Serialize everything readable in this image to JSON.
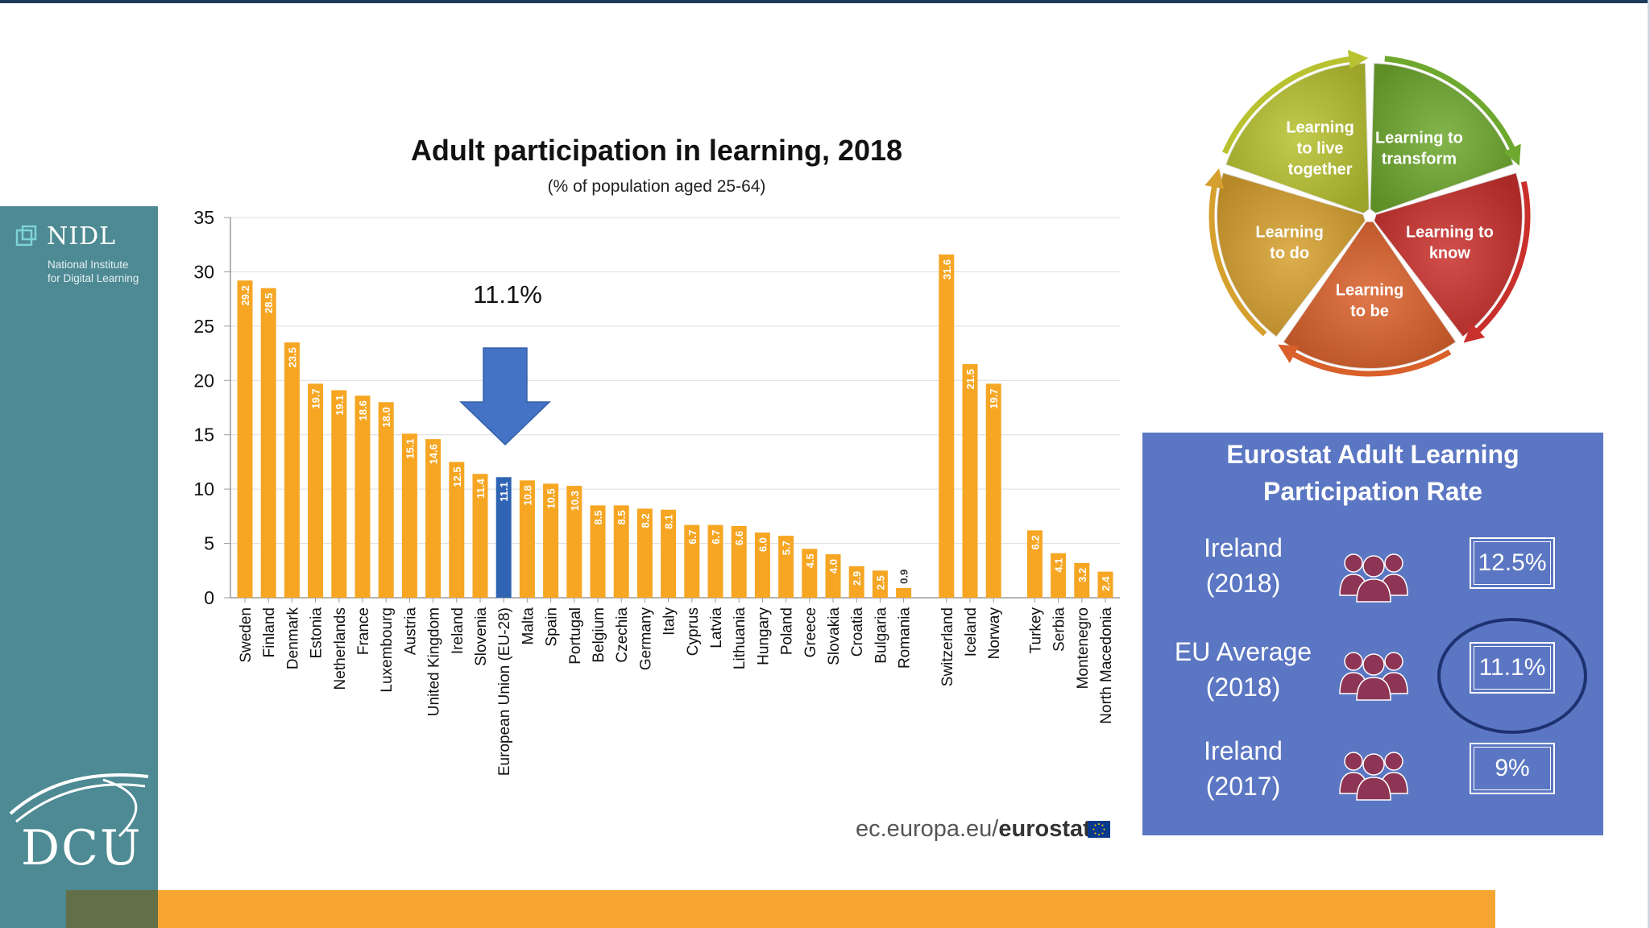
{
  "sidebar": {
    "nidl_name": "NIDL",
    "nidl_subtitle_line1": "National Institute",
    "nidl_subtitle_line2": "for Digital Learning",
    "dcu_text": "DCU"
  },
  "colors": {
    "bar": "#f6a623",
    "bar_highlight": "#2f64b3",
    "arrow": "#4472c4",
    "sidebar": "#4d8a93",
    "box": "#5b76c2",
    "people_icon": "#8e3555"
  },
  "chart_data": {
    "type": "bar",
    "title": "Adult participation in learning, 2018",
    "subtitle": "(% of population aged 25-64)",
    "xlabel": "",
    "ylabel": "",
    "ylim": [
      0,
      35
    ],
    "yticks": [
      0,
      5,
      10,
      15,
      20,
      25,
      30,
      35
    ],
    "grid": true,
    "highlight_category": "European Union (EU-28)",
    "annotation": "11.1%",
    "categories": [
      "Sweden",
      "Finland",
      "Denmark",
      "Estonia",
      "Netherlands",
      "France",
      "Luxembourg",
      "Austria",
      "United Kingdom",
      "Ireland",
      "Slovenia",
      "European Union (EU-28)",
      "Malta",
      "Spain",
      "Portugal",
      "Belgium",
      "Czechia",
      "Germany",
      "Italy",
      "Cyprus",
      "Latvia",
      "Lithuania",
      "Hungary",
      "Poland",
      "Greece",
      "Slovakia",
      "Croatia",
      "Bulgaria",
      "Romania",
      "Switzerland",
      "Iceland",
      "Norway",
      "Turkey",
      "Serbia",
      "Montenegro",
      "North Macedonia"
    ],
    "values": [
      29.2,
      28.5,
      23.5,
      19.7,
      19.1,
      18.6,
      18.0,
      15.1,
      14.6,
      12.5,
      11.4,
      11.1,
      10.8,
      10.5,
      10.3,
      8.5,
      8.5,
      8.2,
      8.1,
      6.7,
      6.7,
      6.6,
      6.0,
      5.7,
      4.5,
      4.0,
      2.9,
      2.5,
      0.9,
      31.6,
      21.5,
      19.7,
      6.2,
      4.1,
      3.2,
      2.4
    ],
    "data_labels": [
      "29.2",
      "28.5",
      "23.5",
      "19.7",
      "19.1",
      "18.6",
      "18.0",
      "15.1",
      "14.6",
      "12.5",
      "11.4",
      "11.1",
      "10.8",
      "10.5",
      "10.3",
      "8.5",
      "8.5",
      "8.2",
      "8.1",
      "6.7",
      "6.7",
      "6.6",
      "6.0",
      "5.7",
      "4.5",
      "4.0",
      "2.9",
      "2.5",
      "0.9",
      "31.6",
      "21.5",
      "19.7",
      "6.2",
      "4.1",
      "3.2",
      "2.4"
    ],
    "source_prefix": "ec.europa.eu/",
    "source_bold": "eurostat"
  },
  "wheel": {
    "segments": [
      {
        "name": "learning-to-transform",
        "lines": [
          "Learning to",
          "transform"
        ],
        "color": "#6ea82e"
      },
      {
        "name": "learning-to-know",
        "lines": [
          "Learning to",
          "know"
        ],
        "color": "#c9302c"
      },
      {
        "name": "learning-to-be",
        "lines": [
          "Learning",
          "to be"
        ],
        "color": "#d9602a"
      },
      {
        "name": "learning-to-do",
        "lines": [
          "Learning",
          "to do"
        ],
        "color": "#d6a02e"
      },
      {
        "name": "learning-to-live-together",
        "lines": [
          "Learning",
          "to live",
          "together"
        ],
        "color": "#b8c230"
      }
    ]
  },
  "eurostat_box": {
    "title_line1": "Eurostat Adult Learning",
    "title_line2": "Participation Rate",
    "rows": [
      {
        "label_line1": "Ireland",
        "label_line2": "(2018)",
        "value": "12.5%"
      },
      {
        "label_line1": "EU Average",
        "label_line2": "(2018)",
        "value": "11.1%"
      },
      {
        "label_line1": "Ireland",
        "label_line2": "(2017)",
        "value": "9%"
      }
    ]
  }
}
